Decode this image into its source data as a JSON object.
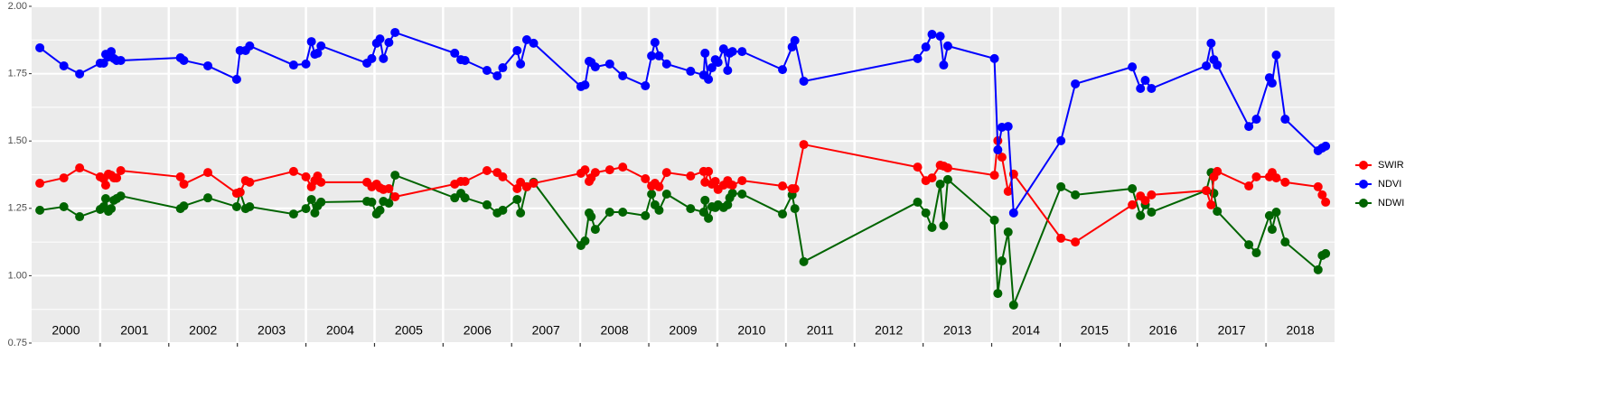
{
  "chart_data": {
    "type": "line",
    "x": [
      2000.12,
      2000.47,
      2000.7,
      2001.0,
      2001.05,
      2001.08,
      2001.12,
      2001.16,
      2001.2,
      2001.24,
      2001.3,
      2002.17,
      2002.22,
      2002.57,
      2002.99,
      2003.04,
      2003.12,
      2003.18,
      2003.82,
      2004.0,
      2004.08,
      2004.13,
      2004.17,
      2004.22,
      2004.89,
      2004.96,
      2005.03,
      2005.08,
      2005.13,
      2005.21,
      2005.3,
      2006.17,
      2006.26,
      2006.32,
      2006.64,
      2006.79,
      2006.87,
      2007.08,
      2007.13,
      2007.22,
      2007.32,
      2008.01,
      2008.07,
      2008.13,
      2008.16,
      2008.22,
      2008.43,
      2008.62,
      2008.95,
      2009.04,
      2009.09,
      2009.15,
      2009.26,
      2009.61,
      2009.8,
      2009.82,
      2009.87,
      2009.92,
      2009.97,
      2010.01,
      2010.09,
      2010.15,
      2010.18,
      2010.22,
      2010.36,
      2010.95,
      2011.09,
      2011.13,
      2011.26,
      2012.92,
      2013.04,
      2013.13,
      2013.25,
      2013.3,
      2013.36,
      2014.04,
      2014.09,
      2014.15,
      2014.24,
      2014.32,
      2015.01,
      2015.22,
      2016.05,
      2016.17,
      2016.24,
      2016.33,
      2017.13,
      2017.2,
      2017.24,
      2017.29,
      2017.75,
      2017.86,
      2018.05,
      2018.09,
      2018.15,
      2018.28,
      2018.76,
      2018.82,
      2018.87
    ],
    "series": [
      {
        "name": "SWIR",
        "color": "#ff0000",
        "values": [
          1.343,
          1.363,
          1.4,
          1.367,
          1.36,
          1.336,
          1.377,
          1.373,
          1.363,
          1.363,
          1.39,
          1.367,
          1.34,
          1.383,
          1.306,
          1.31,
          1.353,
          1.347,
          1.387,
          1.367,
          1.33,
          1.353,
          1.37,
          1.347,
          1.347,
          1.33,
          1.34,
          1.326,
          1.32,
          1.323,
          1.293,
          1.34,
          1.35,
          1.35,
          1.39,
          1.383,
          1.367,
          1.323,
          1.347,
          1.33,
          1.343,
          1.38,
          1.393,
          1.35,
          1.363,
          1.383,
          1.393,
          1.403,
          1.36,
          1.333,
          1.343,
          1.33,
          1.383,
          1.37,
          1.387,
          1.347,
          1.387,
          1.34,
          1.35,
          1.32,
          1.336,
          1.353,
          1.34,
          1.336,
          1.353,
          1.333,
          1.323,
          1.323,
          1.487,
          1.403,
          1.353,
          1.363,
          1.41,
          1.407,
          1.4,
          1.373,
          1.501,
          1.44,
          1.313,
          1.377,
          1.139,
          1.125,
          1.263,
          1.296,
          1.279,
          1.3,
          1.316,
          1.263,
          1.367,
          1.387,
          1.333,
          1.367,
          1.367,
          1.383,
          1.363,
          1.347,
          1.33,
          1.3,
          1.273
        ]
      },
      {
        "name": "NDVI",
        "color": "#0000ff",
        "values": [
          1.846,
          1.779,
          1.749,
          1.789,
          1.789,
          1.822,
          1.812,
          1.832,
          1.806,
          1.799,
          1.799,
          1.809,
          1.799,
          1.779,
          1.729,
          1.836,
          1.836,
          1.853,
          1.782,
          1.786,
          1.869,
          1.822,
          1.826,
          1.853,
          1.789,
          1.806,
          1.863,
          1.879,
          1.806,
          1.866,
          1.903,
          1.826,
          1.802,
          1.799,
          1.762,
          1.742,
          1.772,
          1.836,
          1.786,
          1.876,
          1.863,
          1.702,
          1.708,
          1.796,
          1.792,
          1.775,
          1.786,
          1.742,
          1.705,
          1.816,
          1.866,
          1.816,
          1.786,
          1.759,
          1.745,
          1.826,
          1.729,
          1.772,
          1.802,
          1.792,
          1.842,
          1.762,
          1.826,
          1.832,
          1.832,
          1.765,
          1.849,
          1.873,
          1.722,
          1.806,
          1.849,
          1.896,
          1.889,
          1.782,
          1.853,
          1.806,
          1.467,
          1.551,
          1.554,
          1.233,
          1.501,
          1.712,
          1.775,
          1.695,
          1.725,
          1.695,
          1.779,
          1.863,
          1.802,
          1.782,
          1.554,
          1.581,
          1.735,
          1.715,
          1.819,
          1.581,
          1.464,
          1.474,
          1.481
        ]
      },
      {
        "name": "NDWI",
        "color": "#006400",
        "values": [
          1.243,
          1.256,
          1.219,
          1.246,
          1.256,
          1.286,
          1.239,
          1.249,
          1.28,
          1.286,
          1.296,
          1.249,
          1.259,
          1.289,
          1.256,
          1.31,
          1.249,
          1.256,
          1.229,
          1.249,
          1.283,
          1.233,
          1.259,
          1.273,
          1.276,
          1.273,
          1.229,
          1.243,
          1.276,
          1.269,
          1.373,
          1.289,
          1.306,
          1.289,
          1.263,
          1.233,
          1.243,
          1.283,
          1.233,
          1.33,
          1.347,
          1.112,
          1.129,
          1.233,
          1.219,
          1.172,
          1.236,
          1.236,
          1.223,
          1.303,
          1.263,
          1.243,
          1.303,
          1.249,
          1.236,
          1.28,
          1.213,
          1.256,
          1.253,
          1.263,
          1.253,
          1.263,
          1.289,
          1.306,
          1.303,
          1.229,
          1.3,
          1.249,
          1.052,
          1.273,
          1.233,
          1.179,
          1.34,
          1.186,
          1.357,
          1.206,
          0.934,
          1.055,
          1.162,
          0.891,
          1.33,
          1.3,
          1.323,
          1.223,
          1.263,
          1.236,
          1.316,
          1.383,
          1.306,
          1.239,
          1.115,
          1.085,
          1.223,
          1.172,
          1.236,
          1.125,
          1.022,
          1.075,
          1.082
        ]
      }
    ],
    "xlim": [
      2000,
      2019
    ],
    "xticks": [
      2001,
      2002,
      2003,
      2004,
      2005,
      2006,
      2007,
      2008,
      2009,
      2010,
      2011,
      2012,
      2013,
      2014,
      2015,
      2016,
      2017,
      2018
    ],
    "ylim": [
      0.75,
      2.0
    ],
    "yticks": [
      {
        "value": 0.75,
        "label": "0.75"
      },
      {
        "value": 1.0,
        "label": "1.00"
      },
      {
        "value": 1.25,
        "label": "1.25"
      },
      {
        "value": 1.5,
        "label": "1.50"
      },
      {
        "value": 1.75,
        "label": "1.75"
      },
      {
        "value": 2.0,
        "label": "2.00"
      }
    ],
    "year_labels": [
      "2000",
      "2001",
      "2002",
      "2003",
      "2004",
      "2005",
      "2006",
      "2007",
      "2008",
      "2009",
      "2010",
      "2011",
      "2012",
      "2013",
      "2014",
      "2015",
      "2016",
      "2017",
      "2018"
    ],
    "grid": true,
    "legend": "right"
  }
}
